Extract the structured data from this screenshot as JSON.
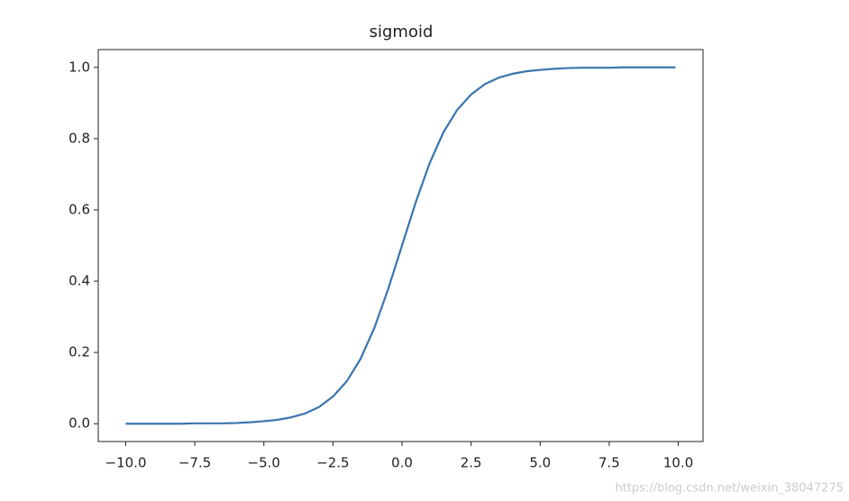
{
  "chart_data": {
    "type": "line",
    "title": "sigmoid",
    "watermark": "https://blog.csdn.net/weixin_38047275",
    "x": [
      -10,
      -9.5,
      -9,
      -8.5,
      -8,
      -7.5,
      -7,
      -6.5,
      -6,
      -5.5,
      -5,
      -4.5,
      -4,
      -3.5,
      -3,
      -2.5,
      -2,
      -1.5,
      -1,
      -0.5,
      0,
      0.5,
      1,
      1.5,
      2,
      2.5,
      3,
      3.5,
      4,
      4.5,
      5,
      5.5,
      6,
      6.5,
      7,
      7.5,
      8,
      8.5,
      9,
      9.5,
      9.9
    ],
    "series": [
      {
        "name": "sigmoid",
        "color": "#3b75af",
        "values": [
          0.0,
          0.0,
          0.0,
          0.0,
          0.0,
          0.001,
          0.001,
          0.001,
          0.002,
          0.004,
          0.007,
          0.011,
          0.018,
          0.029,
          0.047,
          0.076,
          0.119,
          0.182,
          0.269,
          0.378,
          0.5,
          0.622,
          0.731,
          0.818,
          0.881,
          0.924,
          0.953,
          0.971,
          0.982,
          0.989,
          0.993,
          0.996,
          0.998,
          0.999,
          0.999,
          0.999,
          1.0,
          1.0,
          1.0,
          1.0,
          1.0
        ]
      }
    ],
    "xlim": [
      -10.995,
      10.895
    ],
    "ylim": [
      -0.05,
      1.05
    ],
    "xticks": [
      {
        "value": -10,
        "label": "−10.0"
      },
      {
        "value": -7.5,
        "label": "−7.5"
      },
      {
        "value": -5,
        "label": "−5.0"
      },
      {
        "value": -2.5,
        "label": "−2.5"
      },
      {
        "value": 0,
        "label": "0.0"
      },
      2.5,
      {
        "value": 5,
        "label": "5.0"
      },
      7.5,
      {
        "value": 10,
        "label": "10.0"
      }
    ],
    "yticks": [
      {
        "value": 0,
        "label": "0.0"
      },
      0.2,
      0.4,
      0.6,
      0.8,
      {
        "value": 1,
        "label": "1.0"
      }
    ]
  }
}
